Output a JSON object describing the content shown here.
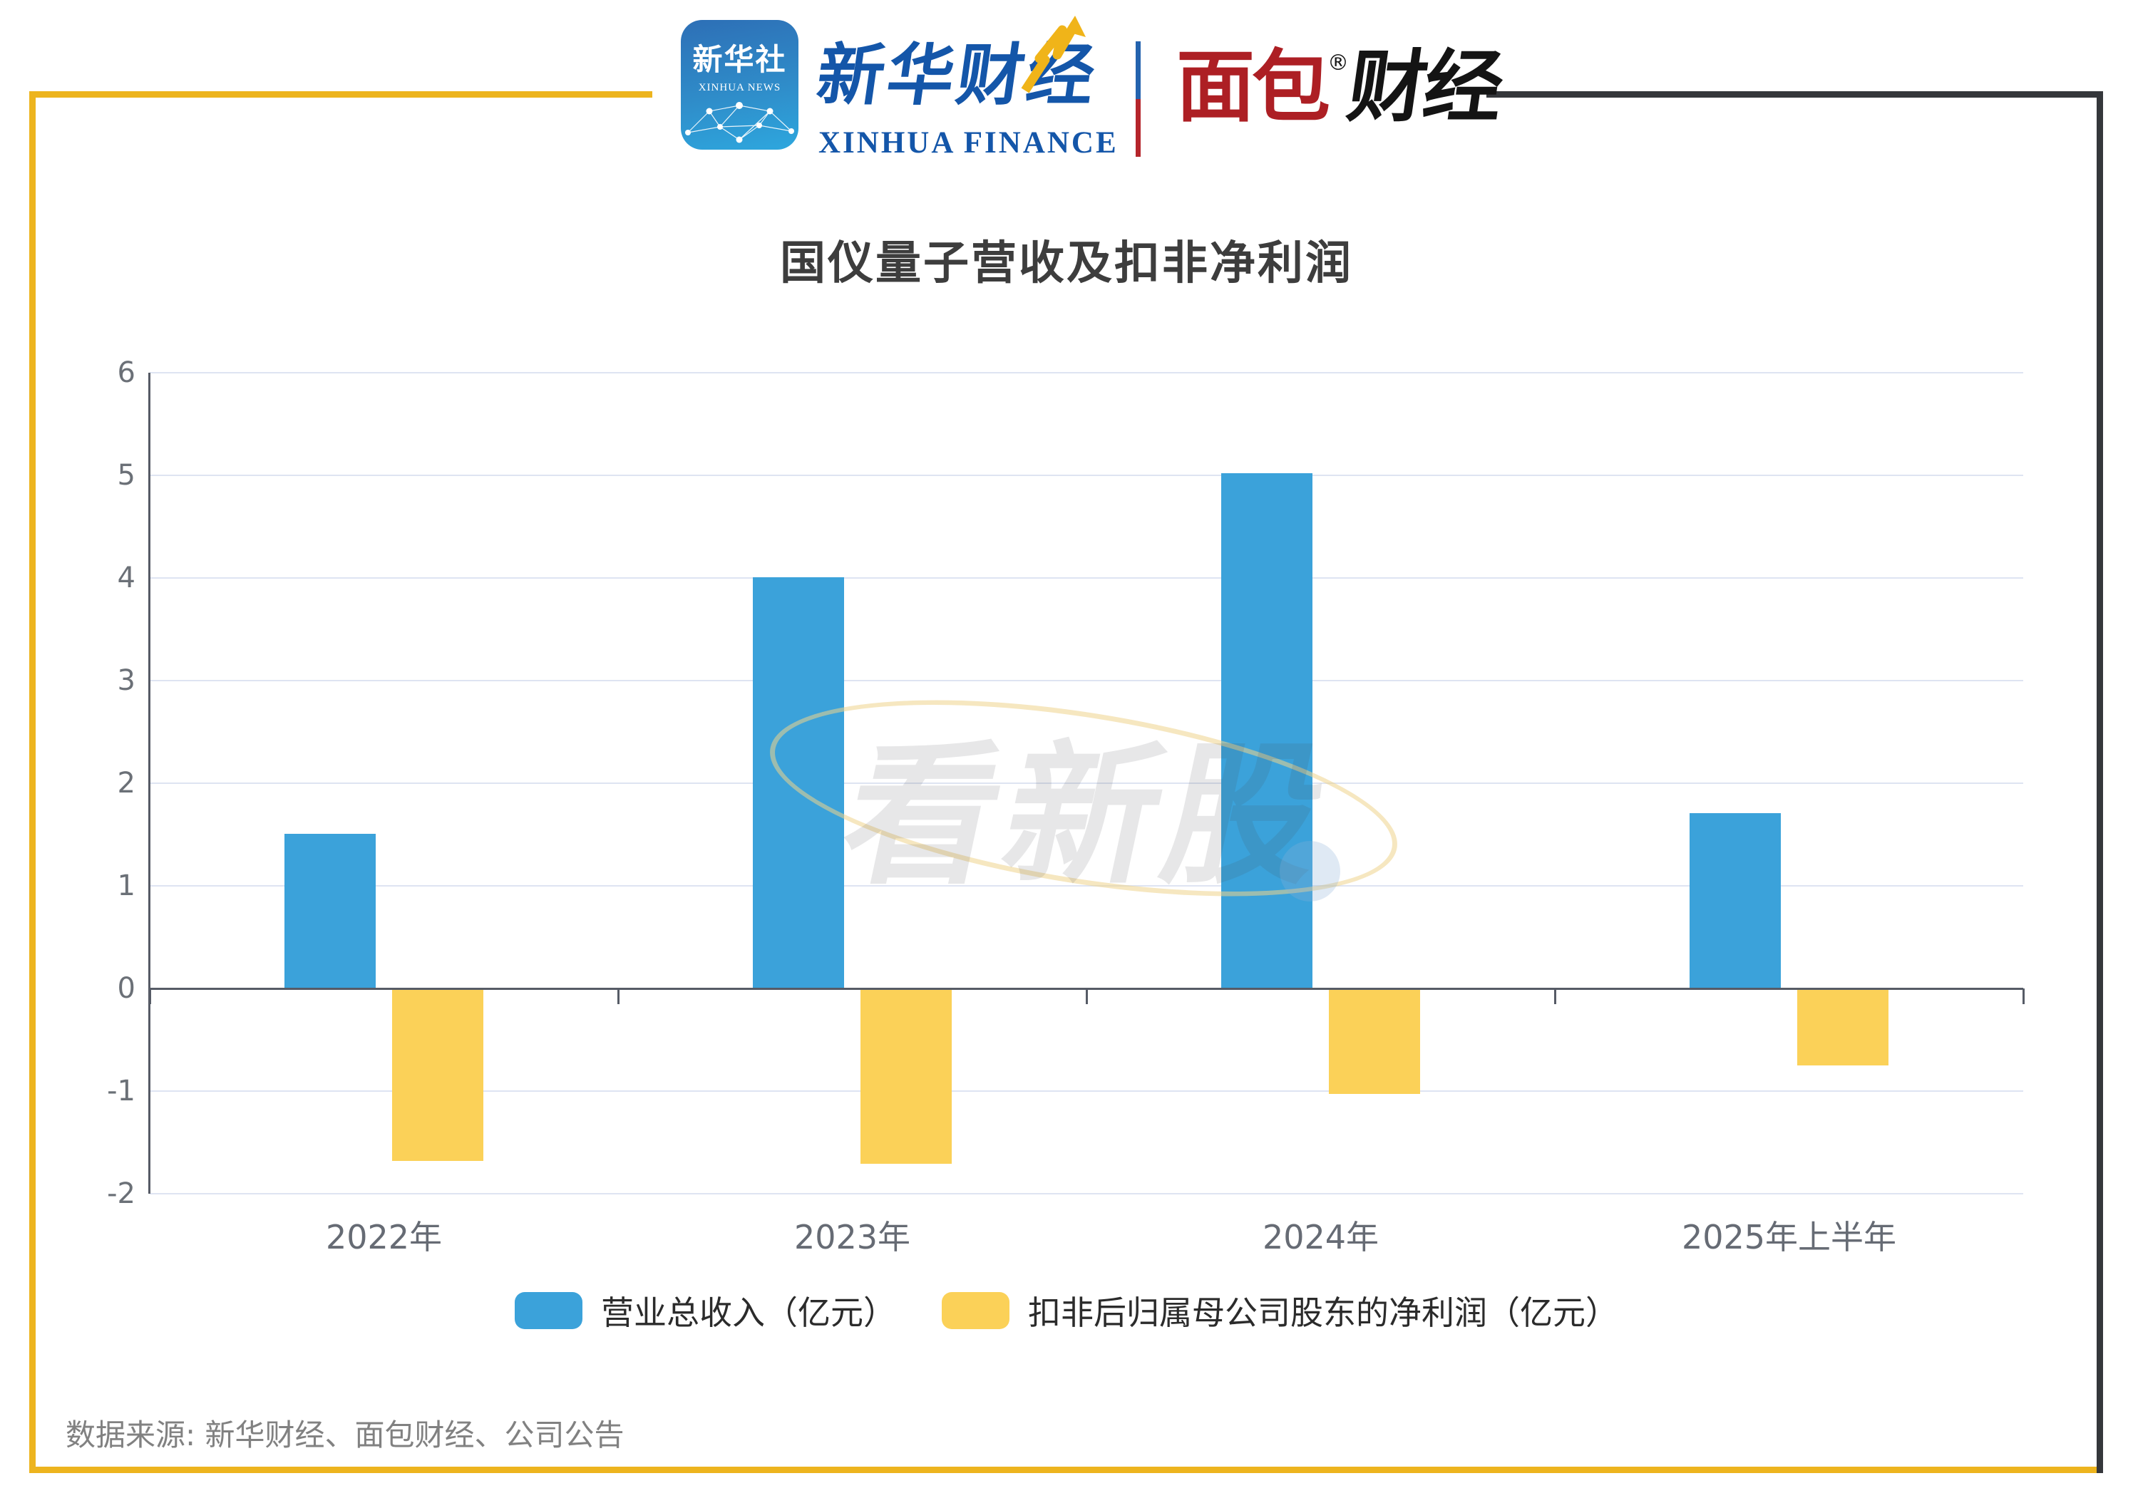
{
  "header": {
    "xinhua_news_icon": {
      "line1": "新华社",
      "line2": "XINHUA NEWS"
    },
    "xinhua_finance": {
      "calligraphy": "新华财经",
      "latin": "XINHUA FINANCE"
    },
    "mianbao": {
      "text_red": "面包",
      "reg": "®",
      "text_black": "财经"
    }
  },
  "chart_data": {
    "type": "bar",
    "title": "国仪量子营收及扣非净利润",
    "categories": [
      "2022年",
      "2023年",
      "2024年",
      "2025年上半年"
    ],
    "series": [
      {
        "name": "营业总收入（亿元）",
        "color": "#3ba2da",
        "values": [
          1.51,
          4.01,
          5.02,
          1.71
        ]
      },
      {
        "name": "扣非后归属母公司股东的净利润（亿元）",
        "color": "#fbd158",
        "values": [
          -1.68,
          -1.71,
          -1.03,
          -0.75
        ]
      }
    ],
    "ylim": [
      -2,
      6
    ],
    "yticks": [
      6,
      5,
      4,
      3,
      2,
      1,
      0,
      -1,
      -2
    ],
    "grid": true,
    "legend_position": "bottom"
  },
  "watermark": {
    "text": "看新股"
  },
  "footer": {
    "source": "数据来源: 新华财经、面包财经、公司公告"
  },
  "colors": {
    "revenue_bar": "#3ba2da",
    "profit_bar": "#fbd158",
    "frame_yellow": "#edb41e",
    "frame_dark": "#35373b",
    "brand_blue": "#1456a9",
    "brand_red": "#ad1f24",
    "axis": "#565b66",
    "gridline": "#dee4f2"
  }
}
